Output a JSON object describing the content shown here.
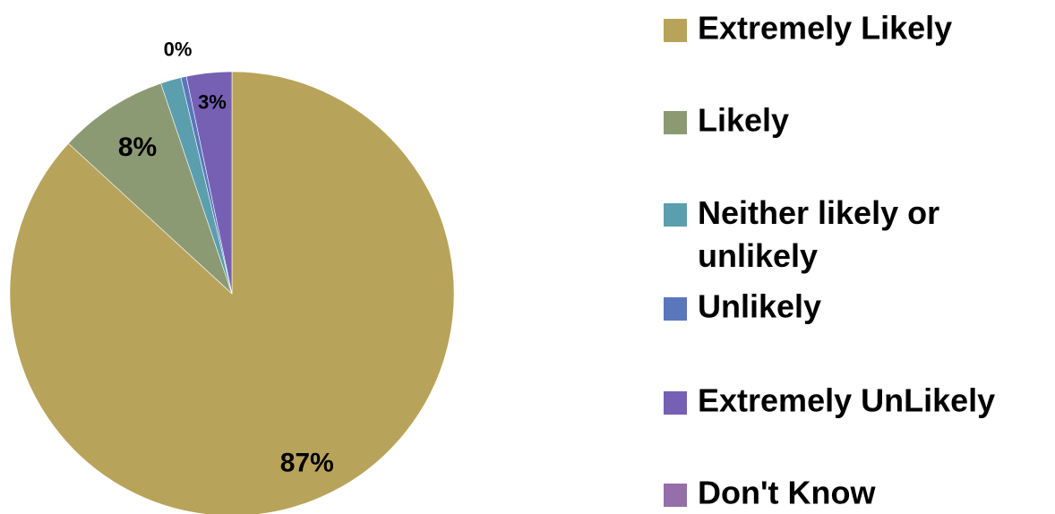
{
  "chart_data": {
    "type": "pie",
    "categories": [
      "Extremely Likely",
      "Likely",
      "Neither likely or unlikely",
      "Unlikely",
      "Extremely UnLikely",
      "Don't Know"
    ],
    "values": [
      87,
      8,
      1.5,
      0.4,
      3.3,
      0
    ],
    "data_labels": [
      "87%",
      "8%",
      "",
      "0%",
      "3%",
      ""
    ],
    "colors": [
      "#B8A35A",
      "#8C9A74",
      "#5B9EAE",
      "#5A77BC",
      "#7560B4",
      "#946FAA"
    ],
    "legend_position": "right",
    "title": ""
  }
}
